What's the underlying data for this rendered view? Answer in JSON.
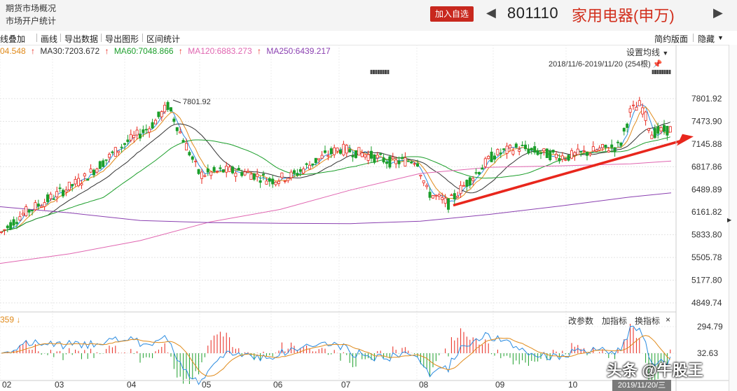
{
  "topbar": {
    "link1": "期货市场概况",
    "link2": "市场开户统计",
    "add_watchlist": "加入自选",
    "prev_icon": "◀",
    "next_icon": "▶",
    "code": "801110",
    "name": "家用电器(申万)"
  },
  "toolbar": {
    "items": [
      "线叠加",
      "画线",
      "导出数据",
      "导出图形",
      "区间统计"
    ],
    "right_items": [
      "简约版面",
      "隐藏"
    ]
  },
  "ma_legend": [
    {
      "label": "04.548",
      "color": "#e08a1a"
    },
    {
      "label": "MA30:7203.672",
      "color": "#333333"
    },
    {
      "label": "MA60:7048.866",
      "color": "#1b9e2a"
    },
    {
      "label": "MA120:6883.273",
      "color": "#e065b0"
    },
    {
      "label": "MA250:6439.217",
      "color": "#8a3fb0"
    }
  ],
  "main_chart": {
    "set_ma": "设置均线",
    "range": "2018/11/6-2019/11/20 (254根)",
    "high_label": "7801.92",
    "price_ticks": [
      "7801.92",
      "7473.90",
      "7145.88",
      "6817.86",
      "6489.89",
      "6161.82",
      "5833.80",
      "5505.78",
      "5177.80",
      "4849.74"
    ]
  },
  "sub_chart": {
    "indicator_value": "359",
    "buttons": [
      "改参数",
      "加指标",
      "换指标",
      "×"
    ],
    "ticks": [
      "294.79",
      "32.63"
    ]
  },
  "time_axis": {
    "months": [
      "02",
      "03",
      "04",
      "05",
      "06",
      "07",
      "08",
      "09",
      "10"
    ],
    "cursor_date": "2019/11/20/三"
  },
  "watermark": "头条 @牛股王",
  "colors": {
    "up": "#e8261c",
    "down": "#1b9e2a",
    "accent": "#c8281e",
    "ma5": "#e08a1a",
    "ma10": "#2a8be0",
    "ma30": "#333333",
    "ma60": "#1b9e2a",
    "ma120": "#e065b0",
    "ma250": "#8a3fb0"
  }
}
